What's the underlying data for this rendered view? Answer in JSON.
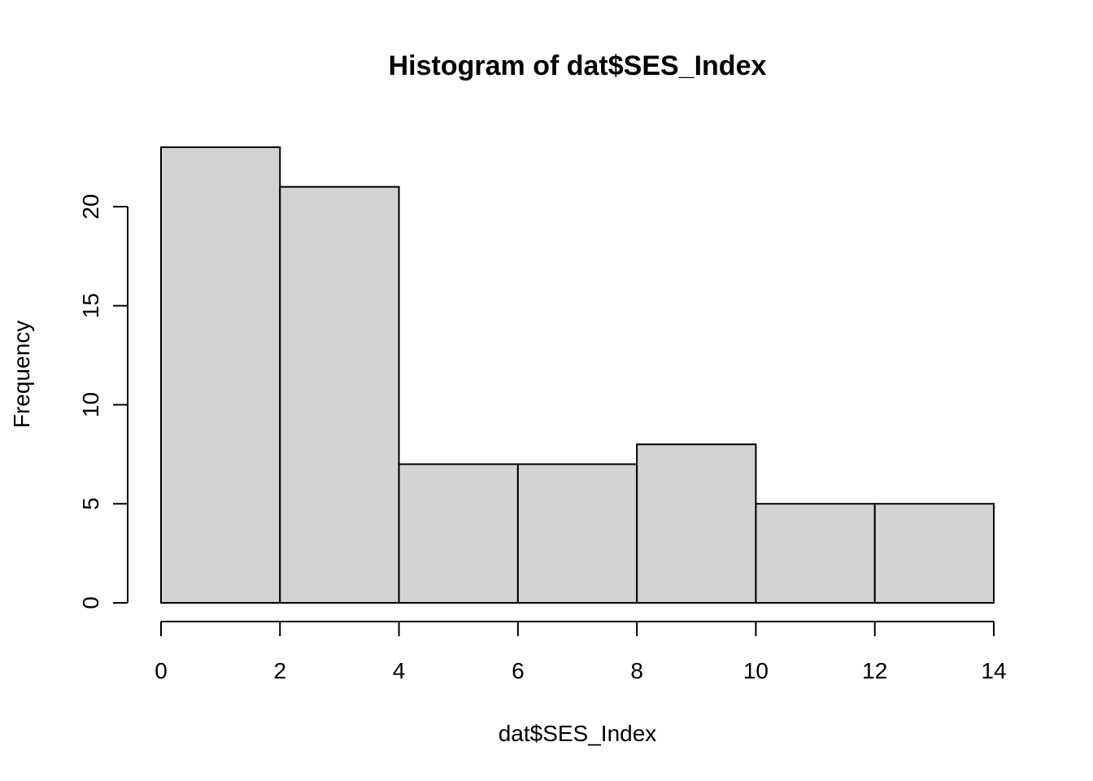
{
  "chart_data": {
    "type": "bar",
    "title": "Histogram of dat$SES_Index",
    "xlabel": "dat$SES_Index",
    "ylabel": "Frequency",
    "bins": [
      {
        "from": 0,
        "to": 2,
        "count": 23
      },
      {
        "from": 2,
        "to": 4,
        "count": 21
      },
      {
        "from": 4,
        "to": 6,
        "count": 7
      },
      {
        "from": 6,
        "to": 8,
        "count": 7
      },
      {
        "from": 8,
        "to": 10,
        "count": 8
      },
      {
        "from": 10,
        "to": 12,
        "count": 5
      },
      {
        "from": 12,
        "to": 14,
        "count": 5
      }
    ],
    "x_ticks": [
      0,
      2,
      4,
      6,
      8,
      10,
      12,
      14
    ],
    "y_ticks": [
      0,
      5,
      10,
      15,
      20
    ],
    "xlim": [
      0,
      14
    ],
    "ylim": [
      0,
      23
    ],
    "bar_color": "#d3d3d3",
    "grid": false
  }
}
